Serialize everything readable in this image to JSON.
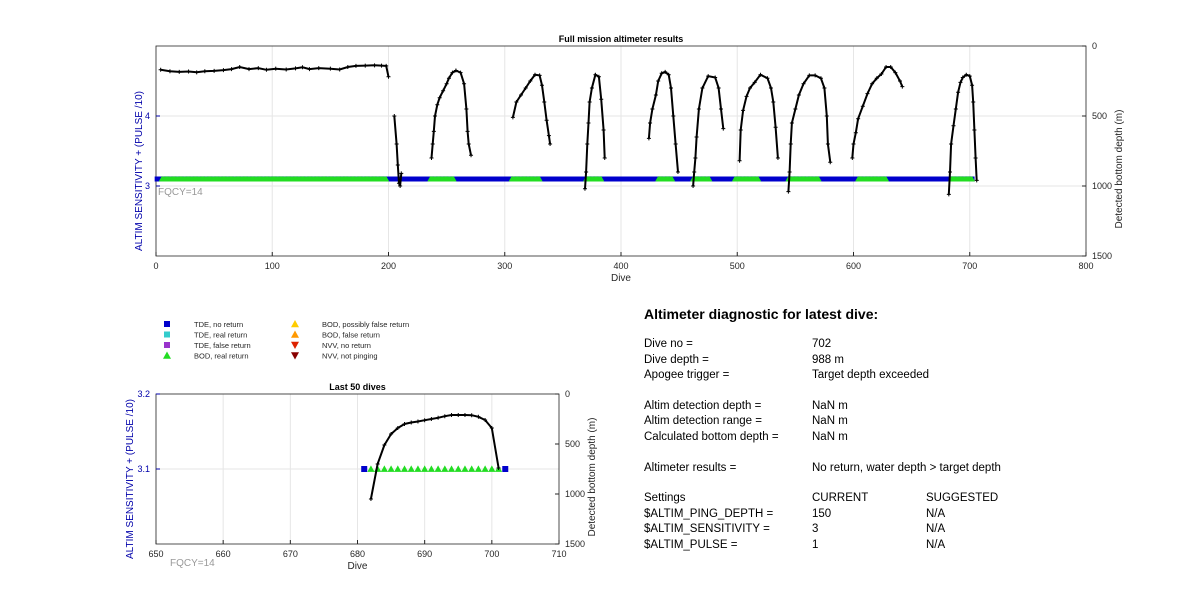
{
  "legend": [
    {
      "label": "TDE, no return",
      "marker": "square",
      "color": "#0000cc"
    },
    {
      "label": "TDE, real return",
      "marker": "square",
      "color": "#33cccc"
    },
    {
      "label": "TDE, false return",
      "marker": "square",
      "color": "#9933cc"
    },
    {
      "label": "BOD, real return",
      "marker": "triangle-up",
      "color": "#22dd22"
    },
    {
      "label": "BOD, possibly false return",
      "marker": "triangle-up",
      "color": "#ffcc00"
    },
    {
      "label": "BOD, false return",
      "marker": "triangle-up",
      "color": "#ff9900"
    },
    {
      "label": "NVV, no return",
      "marker": "triangle-down",
      "color": "#dd2200"
    },
    {
      "label": "NVV, not pinging",
      "marker": "triangle-down",
      "color": "#880000"
    }
  ],
  "fqcy_label": "FQCY=14",
  "colors": {
    "axis_left": "#0000aa",
    "tde": "#0000cc",
    "bod": "#22dd22",
    "depth_line": "#000000",
    "fqcy": "#999999"
  },
  "diagnostic": {
    "title": "Altimeter diagnostic for latest dive:",
    "rows": [
      {
        "label": "Dive no =",
        "value": "702"
      },
      {
        "label": "Dive depth =",
        "value": "988 m"
      },
      {
        "label": "Apogee trigger =",
        "value": "Target depth exceeded"
      },
      {
        "gap": true
      },
      {
        "label": "Altim detection depth =",
        "value": "NaN m"
      },
      {
        "label": "Altim detection range =",
        "value": "NaN m"
      },
      {
        "label": "Calculated bottom depth =",
        "value": "NaN m"
      },
      {
        "gap": true
      },
      {
        "label": "Altimeter results =",
        "value": "No return, water depth > target depth"
      },
      {
        "gap": true
      },
      {
        "label": "Settings",
        "value": "CURRENT",
        "extra": "SUGGESTED"
      },
      {
        "label": "$ALTIM_PING_DEPTH =",
        "value": "150",
        "extra": "N/A"
      },
      {
        "label": "$ALTIM_SENSITIVITY =",
        "value": "3",
        "extra": "N/A"
      },
      {
        "label": "$ALTIM_PULSE =",
        "value": "1",
        "extra": "N/A"
      }
    ]
  },
  "chart_data": [
    {
      "type": "scatter",
      "title": "Full mission altimeter results",
      "xlabel": "Dive",
      "ylabel": "ALTIM SENSITIVITY + (PULSE /10)",
      "y2label": "Detected bottom depth (m)",
      "xlim": [
        0,
        800
      ],
      "xticks": [
        0,
        100,
        200,
        300,
        400,
        500,
        600,
        700,
        800
      ],
      "ylim": [
        2,
        5
      ],
      "yticks_shown": [
        3,
        4
      ],
      "y2lim": [
        0,
        1500
      ],
      "y2ticks": [
        0,
        500,
        1000,
        1500
      ],
      "y2_reversed": true,
      "grid": true,
      "settings_series": [
        {
          "name": "TDE, no return",
          "x_range": [
            1,
            702
          ],
          "y": 3.1
        },
        {
          "name": "BOD, real return",
          "x_ranges": [
            [
              5,
              198
            ],
            [
              236,
              256
            ],
            [
              306,
              330
            ],
            [
              370,
              383
            ],
            [
              432,
              444
            ],
            [
              462,
              476
            ],
            [
              498,
              518
            ],
            [
              544,
              570
            ],
            [
              604,
              628
            ],
            [
              684,
              702
            ]
          ],
          "y": 3.1
        }
      ],
      "depth_segments": [
        {
          "name": "Detected bottom depth",
          "points": [
            [
              4,
              170
            ],
            [
              12,
              180
            ],
            [
              20,
              185
            ],
            [
              28,
              182
            ],
            [
              35,
              188
            ],
            [
              42,
              180
            ],
            [
              50,
              178
            ],
            [
              58,
              172
            ],
            [
              65,
              165
            ],
            [
              72,
              150
            ],
            [
              80,
              165
            ],
            [
              88,
              158
            ],
            [
              95,
              170
            ],
            [
              103,
              162
            ],
            [
              112,
              168
            ],
            [
              120,
              160
            ],
            [
              126,
              152
            ],
            [
              132,
              165
            ],
            [
              140,
              158
            ],
            [
              150,
              162
            ],
            [
              158,
              168
            ],
            [
              165,
              150
            ],
            [
              172,
              142
            ],
            [
              180,
              140
            ],
            [
              188,
              138
            ],
            [
              194,
              140
            ],
            [
              198,
              142
            ],
            [
              200,
              220
            ]
          ]
        },
        {
          "name": "Detected bottom depth",
          "points": [
            [
              205,
              500
            ],
            [
              207,
              700
            ],
            [
              208,
              850
            ],
            [
              209,
              980
            ],
            [
              210,
              1000
            ],
            [
              211,
              910
            ]
          ]
        },
        {
          "name": "Detected bottom depth",
          "points": [
            [
              237,
              800
            ],
            [
              238,
              700
            ],
            [
              239,
              610
            ],
            [
              240,
              500
            ],
            [
              242,
              420
            ],
            [
              244,
              370
            ],
            [
              247,
              320
            ],
            [
              250,
              270
            ],
            [
              252,
              230
            ],
            [
              255,
              190
            ],
            [
              258,
              175
            ],
            [
              262,
              190
            ],
            [
              265,
              270
            ],
            [
              267,
              450
            ],
            [
              268,
              610
            ],
            [
              269,
              700
            ],
            [
              271,
              780
            ]
          ]
        },
        {
          "name": "Detected bottom depth",
          "points": [
            [
              307,
              510
            ],
            [
              310,
              400
            ],
            [
              314,
              350
            ],
            [
              318,
              300
            ],
            [
              322,
              250
            ],
            [
              326,
              205
            ],
            [
              330,
              210
            ],
            [
              332,
              280
            ],
            [
              334,
              400
            ],
            [
              336,
              530
            ],
            [
              338,
              640
            ],
            [
              339,
              700
            ]
          ]
        },
        {
          "name": "Detected bottom depth",
          "points": [
            [
              369,
              1020
            ],
            [
              370,
              900
            ],
            [
              371,
              700
            ],
            [
              372,
              550
            ],
            [
              373,
              400
            ],
            [
              375,
              300
            ],
            [
              378,
              205
            ],
            [
              381,
              220
            ],
            [
              383,
              380
            ],
            [
              385,
              600
            ],
            [
              386,
              800
            ]
          ]
        },
        {
          "name": "Detected bottom depth",
          "points": [
            [
              424,
              660
            ],
            [
              425,
              550
            ],
            [
              427,
              450
            ],
            [
              430,
              350
            ],
            [
              432,
              250
            ],
            [
              435,
              195
            ],
            [
              438,
              185
            ],
            [
              441,
              205
            ],
            [
              443,
              300
            ],
            [
              445,
              500
            ],
            [
              447,
              700
            ],
            [
              449,
              900
            ]
          ]
        },
        {
          "name": "Detected bottom depth",
          "points": [
            [
              462,
              1000
            ],
            [
              463,
              900
            ],
            [
              464,
              800
            ],
            [
              465,
              650
            ],
            [
              467,
              450
            ],
            [
              470,
              300
            ],
            [
              475,
              215
            ],
            [
              481,
              225
            ],
            [
              484,
              300
            ],
            [
              486,
              450
            ],
            [
              488,
              590
            ]
          ]
        },
        {
          "name": "Detected bottom depth",
          "points": [
            [
              502,
              820
            ],
            [
              503,
              600
            ],
            [
              505,
              460
            ],
            [
              508,
              360
            ],
            [
              511,
              300
            ],
            [
              515,
              260
            ],
            [
              520,
              205
            ],
            [
              526,
              230
            ],
            [
              529,
              300
            ],
            [
              531,
              400
            ],
            [
              533,
              580
            ],
            [
              535,
              800
            ]
          ]
        },
        {
          "name": "Detected bottom depth",
          "points": [
            [
              544,
              1040
            ],
            [
              545,
              900
            ],
            [
              546,
              700
            ],
            [
              547,
              550
            ],
            [
              550,
              450
            ],
            [
              553,
              350
            ],
            [
              557,
              270
            ],
            [
              562,
              210
            ],
            [
              567,
              210
            ],
            [
              572,
              230
            ],
            [
              575,
              300
            ],
            [
              577,
              500
            ],
            [
              578,
              700
            ],
            [
              580,
              830
            ]
          ]
        },
        {
          "name": "Detected bottom depth",
          "points": [
            [
              599,
              800
            ],
            [
              600,
              700
            ],
            [
              602,
              620
            ],
            [
              604,
              520
            ],
            [
              608,
              430
            ],
            [
              612,
              340
            ],
            [
              616,
              270
            ],
            [
              620,
              230
            ],
            [
              624,
              200
            ],
            [
              628,
              150
            ],
            [
              632,
              150
            ],
            [
              636,
              190
            ],
            [
              640,
              250
            ],
            [
              642,
              290
            ]
          ]
        },
        {
          "name": "Detected bottom depth",
          "points": [
            [
              682,
              1060
            ],
            [
              683,
              900
            ],
            [
              684,
              700
            ],
            [
              686,
              570
            ],
            [
              688,
              450
            ],
            [
              690,
              330
            ],
            [
              692,
              260
            ],
            [
              694,
              225
            ],
            [
              697,
              205
            ],
            [
              700,
              215
            ],
            [
              702,
              280
            ],
            [
              703,
              400
            ],
            [
              704,
              600
            ],
            [
              705,
              800
            ],
            [
              706,
              960
            ]
          ]
        }
      ]
    },
    {
      "type": "scatter",
      "title": "Last 50 dives",
      "xlabel": "Dive",
      "ylabel": "ALTIM SENSITIVITY + (PULSE /10)",
      "y2label": "Detected bottom depth (m)",
      "xlim": [
        650,
        710
      ],
      "xticks": [
        650,
        660,
        670,
        680,
        690,
        700,
        710
      ],
      "ylim": [
        3.0,
        3.2
      ],
      "yticks": [
        3.1,
        3.2
      ],
      "y2lim": [
        0,
        1500
      ],
      "y2ticks": [
        0,
        500,
        1000,
        1500
      ],
      "y2_reversed": true,
      "grid": true,
      "settings_series": [
        {
          "name": "TDE, no return",
          "x": [
            681,
            702
          ],
          "y": 3.1
        },
        {
          "name": "BOD, real return",
          "x": [
            682,
            683,
            684,
            685,
            686,
            687,
            688,
            689,
            690,
            691,
            692,
            693,
            694,
            695,
            696,
            697,
            698,
            699,
            700,
            701
          ],
          "y": 3.1
        }
      ],
      "depth_segments": [
        {
          "name": "Detected bottom depth",
          "points": [
            [
              682,
              1050
            ],
            [
              683,
              700
            ],
            [
              684,
              510
            ],
            [
              685,
              400
            ],
            [
              686,
              340
            ],
            [
              687,
              300
            ],
            [
              688,
              285
            ],
            [
              689,
              275
            ],
            [
              690,
              262
            ],
            [
              691,
              250
            ],
            [
              692,
              238
            ],
            [
              693,
              222
            ],
            [
              694,
              210
            ],
            [
              695,
              210
            ],
            [
              696,
              210
            ],
            [
              697,
              212
            ],
            [
              698,
              228
            ],
            [
              699,
              260
            ],
            [
              700,
              340
            ],
            [
              701,
              740
            ]
          ]
        }
      ]
    }
  ]
}
